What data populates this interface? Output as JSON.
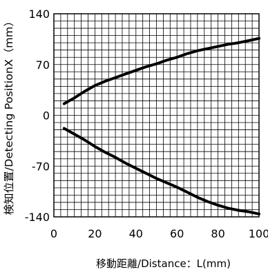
{
  "chart_data": {
    "type": "line",
    "title": "",
    "xlabel": "移動距離/Distance：L(mm)",
    "ylabel": "検知位置/Detecting PositionX（mm）",
    "xlim": [
      0,
      100
    ],
    "ylim": [
      -140,
      140
    ],
    "x_ticks": [
      0,
      20,
      40,
      60,
      80,
      100
    ],
    "x_tick_labels": [
      "0",
      "20",
      "40",
      "60",
      "80",
      "100"
    ],
    "y_ticks": [
      140,
      70,
      0,
      -70,
      -140
    ],
    "y_tick_labels": [
      "140",
      "70",
      "0",
      "-70",
      "-140"
    ],
    "grid": true,
    "line_color": "#000000",
    "series": [
      {
        "x": [
          5,
          10,
          15,
          20,
          25,
          30,
          35,
          40,
          45,
          50,
          55,
          60,
          65,
          70,
          75,
          80,
          85,
          90,
          95,
          100
        ],
        "values": [
          16,
          24,
          33,
          41,
          47,
          52,
          57,
          62,
          67,
          71,
          76,
          80,
          85,
          89,
          92,
          95,
          98,
          100,
          103,
          106
        ]
      },
      {
        "x": [
          5,
          10,
          15,
          20,
          25,
          30,
          35,
          40,
          45,
          50,
          55,
          60,
          65,
          70,
          75,
          80,
          85,
          90,
          95,
          100
        ],
        "values": [
          -18,
          -26,
          -34,
          -43,
          -51,
          -58,
          -66,
          -73,
          -80,
          -87,
          -93,
          -99,
          -106,
          -113,
          -119,
          -124,
          -128,
          -131,
          -133,
          -136
        ]
      }
    ]
  }
}
